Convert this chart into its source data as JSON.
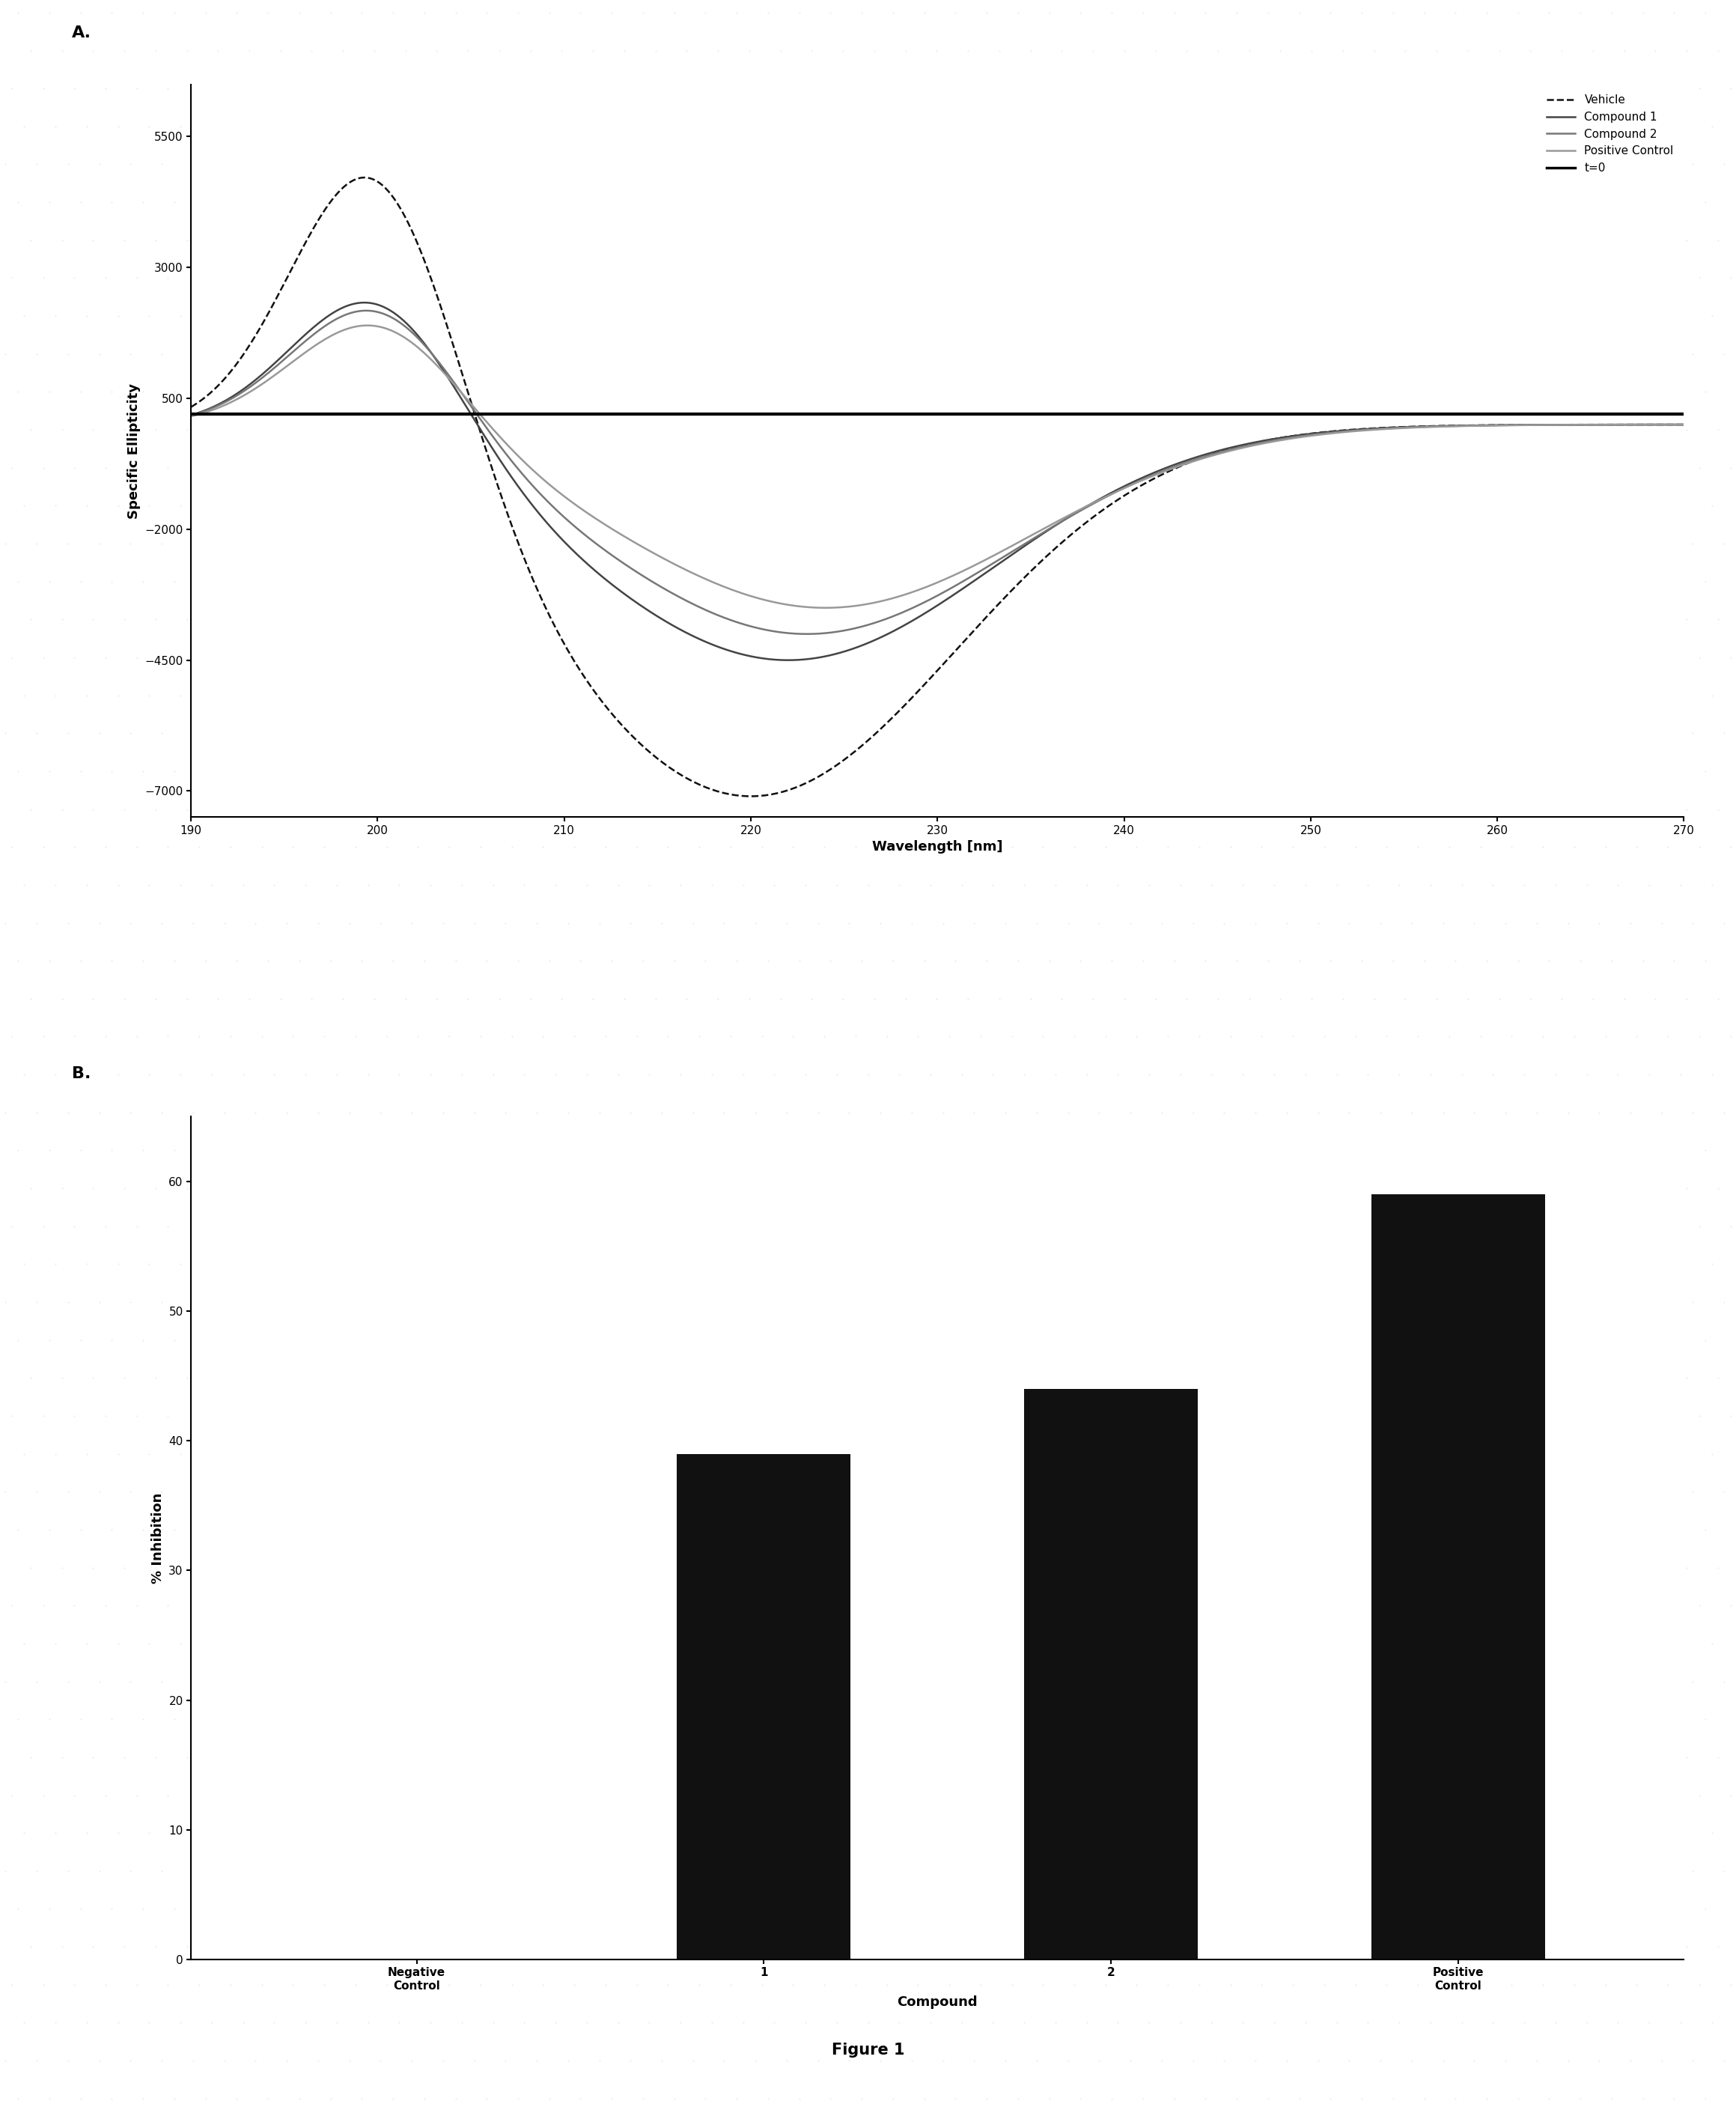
{
  "panel_A_label": "A.",
  "panel_B_label": "B.",
  "figure_caption": "Figure 1",
  "cd_xlim": [
    190,
    270
  ],
  "cd_ylim": [
    -7500,
    6500
  ],
  "cd_xticks": [
    190,
    200,
    210,
    220,
    230,
    240,
    250,
    260,
    270
  ],
  "cd_yticks": [
    -7000,
    -4500,
    -2000,
    500,
    3000,
    5500
  ],
  "cd_xlabel": "Wavelength [nm]",
  "cd_ylabel": "Specific Ellipticity",
  "vehicle_color": "#111111",
  "compound1_color": "#444444",
  "compound2_color": "#777777",
  "pos_ctrl_color": "#999999",
  "t0_color": "#000000",
  "legend_labels": [
    "Vehicle",
    "Compound 1",
    "Compound 2",
    "Positive Control",
    "t=0"
  ],
  "bar_categories": [
    "Negative\nControl",
    "1",
    "2",
    "Positive\nControl"
  ],
  "bar_values": [
    0,
    39,
    44,
    59
  ],
  "bar_color": "#111111",
  "bar_xlabel": "Compound",
  "bar_ylabel": "% Inhibition",
  "bar_ylim": [
    0,
    65
  ],
  "bar_yticks": [
    0,
    10,
    20,
    30,
    40,
    50,
    60
  ],
  "bg_color": "#ffffff",
  "dot_color": "#cccccc"
}
